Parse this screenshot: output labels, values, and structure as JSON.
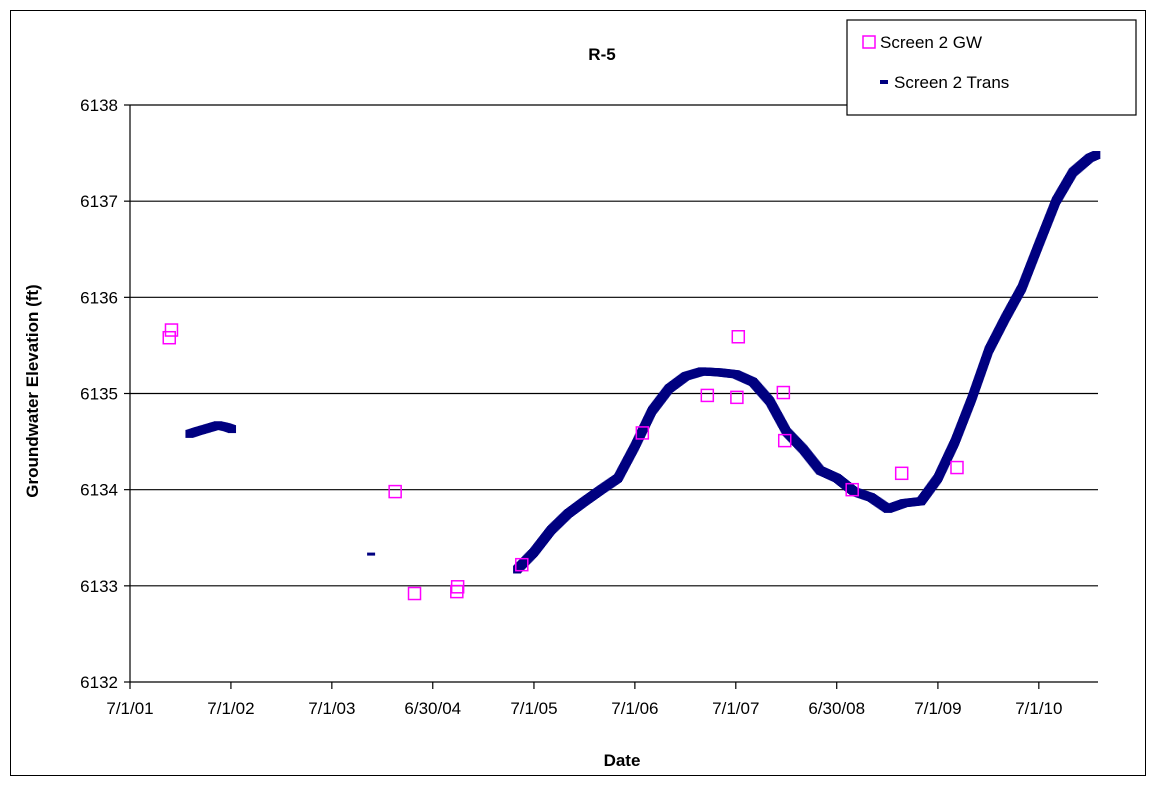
{
  "chart_data": {
    "type": "scatter",
    "title": "R-5",
    "xlabel": "Date",
    "ylabel": "Groundwater  Elevation  (ft)",
    "ylim": [
      6132,
      6138
    ],
    "xlim": [
      "2001-07-01",
      "2011-01-31"
    ],
    "y_ticks": [
      6132,
      6133,
      6134,
      6135,
      6136,
      6137,
      6138
    ],
    "x_ticks": [
      {
        "label": "7/1/01",
        "date": "2001-07-01"
      },
      {
        "label": "7/1/02",
        "date": "2002-07-01"
      },
      {
        "label": "7/1/03",
        "date": "2003-07-01"
      },
      {
        "label": "6/30/04",
        "date": "2004-06-30"
      },
      {
        "label": "7/1/05",
        "date": "2005-07-01"
      },
      {
        "label": "7/1/06",
        "date": "2006-07-01"
      },
      {
        "label": "7/1/07",
        "date": "2007-07-01"
      },
      {
        "label": "6/30/08",
        "date": "2008-06-30"
      },
      {
        "label": "7/1/09",
        "date": "2009-07-01"
      },
      {
        "label": "7/1/10",
        "date": "2010-07-01"
      }
    ],
    "grid": "horizontal",
    "legend": "top-right",
    "series": [
      {
        "name": "Screen 2 GW",
        "marker": "open-square",
        "color": "#ff00ff",
        "points": [
          {
            "date": "2001-11-20",
            "y": 6135.58
          },
          {
            "date": "2001-11-28",
            "y": 6135.66
          },
          {
            "date": "2004-02-15",
            "y": 6133.98
          },
          {
            "date": "2004-04-25",
            "y": 6132.92
          },
          {
            "date": "2004-09-25",
            "y": 6132.94
          },
          {
            "date": "2004-09-28",
            "y": 6132.99
          },
          {
            "date": "2005-05-18",
            "y": 6133.22
          },
          {
            "date": "2006-07-28",
            "y": 6134.59
          },
          {
            "date": "2007-03-20",
            "y": 6134.98
          },
          {
            "date": "2007-07-05",
            "y": 6134.96
          },
          {
            "date": "2007-07-10",
            "y": 6135.59
          },
          {
            "date": "2007-12-20",
            "y": 6135.01
          },
          {
            "date": "2007-12-25",
            "y": 6134.51
          },
          {
            "date": "2008-08-25",
            "y": 6134.0
          },
          {
            "date": "2009-02-20",
            "y": 6134.17
          },
          {
            "date": "2009-09-08",
            "y": 6134.23
          }
        ]
      },
      {
        "name": "Screen 2 Trans",
        "marker": "dash",
        "color": "#000080",
        "segments": [
          [
            {
              "date": "2002-02-01",
              "y": 6134.58
            },
            {
              "date": "2002-03-05",
              "y": 6134.61
            },
            {
              "date": "2002-04-10",
              "y": 6134.64
            },
            {
              "date": "2002-05-15",
              "y": 6134.67
            },
            {
              "date": "2002-06-15",
              "y": 6134.65
            },
            {
              "date": "2002-07-05",
              "y": 6134.63
            }
          ],
          [
            {
              "date": "2003-11-20",
              "y": 6133.33
            }
          ],
          [
            {
              "date": "2005-05-01",
              "y": 6133.17
            },
            {
              "date": "2005-07-01",
              "y": 6133.35
            },
            {
              "date": "2005-09-01",
              "y": 6133.58
            },
            {
              "date": "2005-11-01",
              "y": 6133.75
            },
            {
              "date": "2006-01-01",
              "y": 6133.88
            },
            {
              "date": "2006-03-01",
              "y": 6134.0
            },
            {
              "date": "2006-05-01",
              "y": 6134.12
            },
            {
              "date": "2006-07-01",
              "y": 6134.45
            },
            {
              "date": "2006-09-01",
              "y": 6134.82
            },
            {
              "date": "2006-11-01",
              "y": 6135.05
            },
            {
              "date": "2007-01-01",
              "y": 6135.18
            },
            {
              "date": "2007-03-01",
              "y": 6135.23
            },
            {
              "date": "2007-05-01",
              "y": 6135.22
            },
            {
              "date": "2007-07-01",
              "y": 6135.2
            },
            {
              "date": "2007-09-01",
              "y": 6135.12
            },
            {
              "date": "2007-11-01",
              "y": 6134.92
            },
            {
              "date": "2008-01-01",
              "y": 6134.6
            },
            {
              "date": "2008-03-01",
              "y": 6134.42
            },
            {
              "date": "2008-05-01",
              "y": 6134.2
            },
            {
              "date": "2008-07-01",
              "y": 6134.12
            },
            {
              "date": "2008-09-01",
              "y": 6133.98
            },
            {
              "date": "2008-11-01",
              "y": 6133.92
            },
            {
              "date": "2009-01-01",
              "y": 6133.8
            },
            {
              "date": "2009-03-01",
              "y": 6133.86
            },
            {
              "date": "2009-05-01",
              "y": 6133.88
            },
            {
              "date": "2009-07-01",
              "y": 6134.12
            },
            {
              "date": "2009-09-01",
              "y": 6134.5
            },
            {
              "date": "2009-11-01",
              "y": 6134.95
            },
            {
              "date": "2010-01-01",
              "y": 6135.45
            },
            {
              "date": "2010-03-01",
              "y": 6135.78
            },
            {
              "date": "2010-05-01",
              "y": 6136.1
            },
            {
              "date": "2010-07-01",
              "y": 6136.55
            },
            {
              "date": "2010-09-01",
              "y": 6137.0
            },
            {
              "date": "2010-11-01",
              "y": 6137.3
            },
            {
              "date": "2011-01-01",
              "y": 6137.45
            },
            {
              "date": "2011-01-25",
              "y": 6137.48
            }
          ]
        ]
      }
    ]
  }
}
